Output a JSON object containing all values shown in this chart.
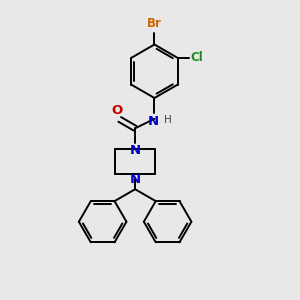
{
  "bg_color": "#e8e8e8",
  "bond_color": "#000000",
  "N_color": "#0000cc",
  "O_color": "#cc0000",
  "Br_color": "#cc6600",
  "Cl_color": "#228B22",
  "H_color": "#444444",
  "line_width": 1.4,
  "font_size": 8.5,
  "xlim": [
    0,
    10
  ],
  "ylim": [
    0,
    10
  ],
  "figsize": [
    3.0,
    3.0
  ],
  "dpi": 100
}
